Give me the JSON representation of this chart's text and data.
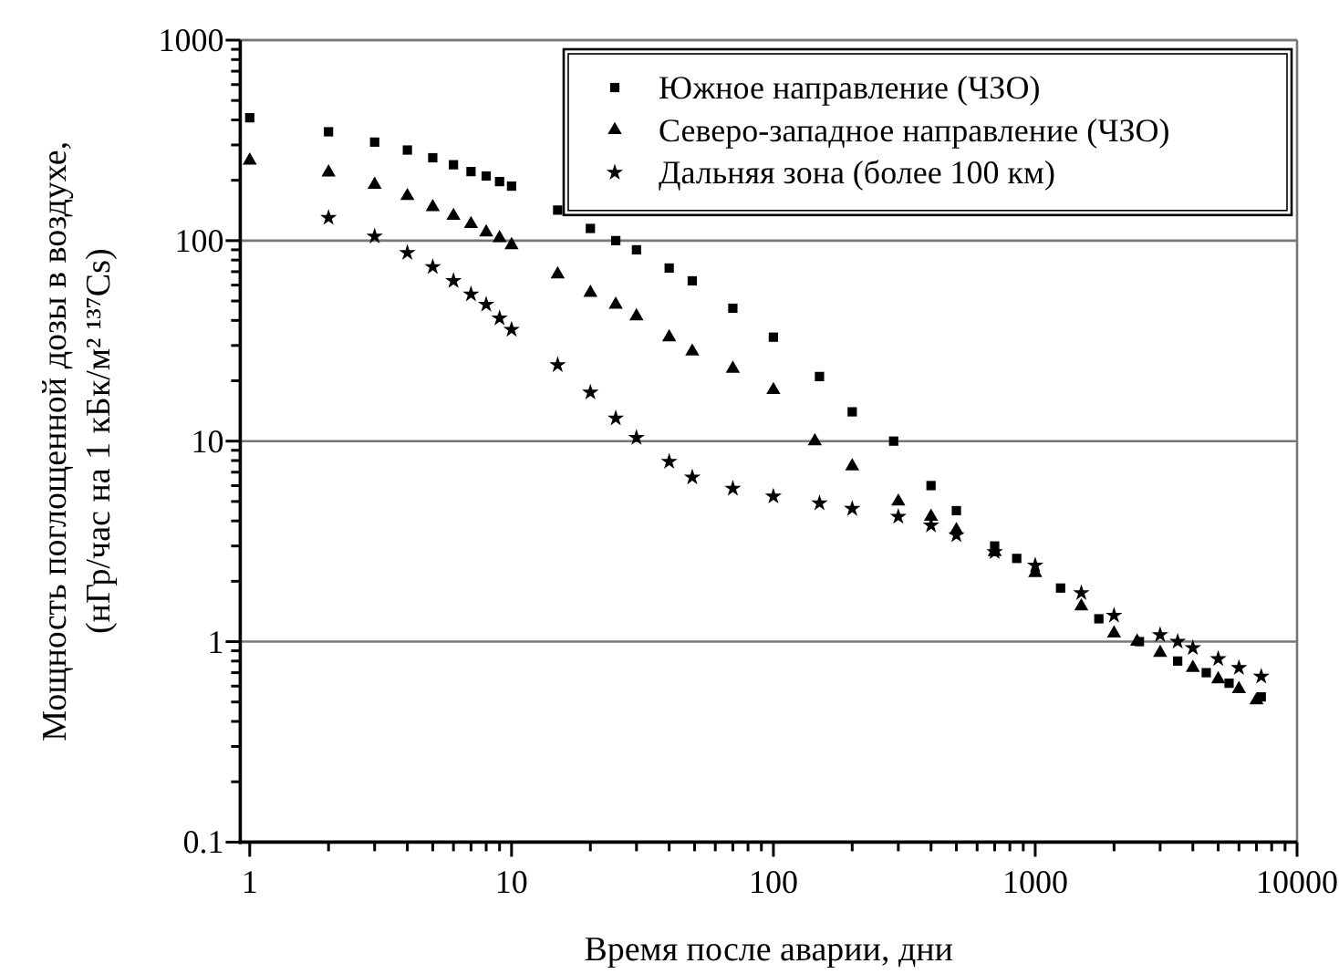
{
  "chart_data": {
    "type": "scatter",
    "xlabel": "Время после аварии, дни",
    "ylabel": "Мощность поглощенной дозы в воздухе,\n(нГр/час на 1 кБк/м² ¹³⁷Cs)",
    "log": "xy",
    "grid": "y",
    "legend": "top right",
    "xlim": [
      0.92,
      10000
    ],
    "ylim": [
      0.1,
      1000
    ],
    "xticks": [
      1,
      {
        "value": 2,
        "label": null
      },
      {
        "value": 3,
        "label": null
      },
      {
        "value": 4,
        "label": null
      },
      {
        "value": 5,
        "label": null
      },
      {
        "value": 6,
        "label": null
      },
      {
        "value": 7,
        "label": null
      },
      {
        "value": 8,
        "label": null
      },
      {
        "value": 9,
        "label": null
      },
      10,
      {
        "value": 20,
        "label": null
      },
      {
        "value": 30,
        "label": null
      },
      {
        "value": 40,
        "label": null
      },
      {
        "value": 50,
        "label": null
      },
      {
        "value": 60,
        "label": null
      },
      {
        "value": 70,
        "label": null
      },
      {
        "value": 80,
        "label": null
      },
      {
        "value": 90,
        "label": null
      },
      100,
      {
        "value": 200,
        "label": null
      },
      {
        "value": 300,
        "label": null
      },
      {
        "value": 400,
        "label": null
      },
      {
        "value": 500,
        "label": null
      },
      {
        "value": 600,
        "label": null
      },
      {
        "value": 700,
        "label": null
      },
      {
        "value": 800,
        "label": null
      },
      {
        "value": 900,
        "label": null
      },
      1000,
      {
        "value": 2000,
        "label": null
      },
      {
        "value": 3000,
        "label": null
      },
      {
        "value": 4000,
        "label": null
      },
      {
        "value": 5000,
        "label": null
      },
      {
        "value": 6000,
        "label": null
      },
      {
        "value": 7000,
        "label": null
      },
      {
        "value": 8000,
        "label": null
      },
      {
        "value": 9000,
        "label": null
      },
      10000
    ],
    "yticks": [
      0.1,
      {
        "value": 0.2,
        "label": null
      },
      {
        "value": 0.3,
        "label": null
      },
      {
        "value": 0.4,
        "label": null
      },
      {
        "value": 0.5,
        "label": null
      },
      {
        "value": 0.6,
        "label": null
      },
      {
        "value": 0.7,
        "label": null
      },
      {
        "value": 0.8,
        "label": null
      },
      {
        "value": 0.9,
        "label": null
      },
      1,
      {
        "value": 2,
        "label": null
      },
      {
        "value": 3,
        "label": null
      },
      {
        "value": 4,
        "label": null
      },
      {
        "value": 5,
        "label": null
      },
      {
        "value": 6,
        "label": null
      },
      {
        "value": 7,
        "label": null
      },
      {
        "value": 8,
        "label": null
      },
      {
        "value": 9,
        "label": null
      },
      10,
      {
        "value": 20,
        "label": null
      },
      {
        "value": 30,
        "label": null
      },
      {
        "value": 40,
        "label": null
      },
      {
        "value": 50,
        "label": null
      },
      {
        "value": 60,
        "label": null
      },
      {
        "value": 70,
        "label": null
      },
      {
        "value": 80,
        "label": null
      },
      {
        "value": 90,
        "label": null
      },
      100,
      {
        "value": 200,
        "label": null
      },
      {
        "value": 300,
        "label": null
      },
      {
        "value": 400,
        "label": null
      },
      {
        "value": 500,
        "label": null
      },
      {
        "value": 600,
        "label": null
      },
      {
        "value": 700,
        "label": null
      },
      {
        "value": 800,
        "label": null
      },
      {
        "value": 900,
        "label": null
      },
      1000
    ],
    "series": [
      {
        "name": "Южное направление (ЧЗО)",
        "color": "#000000",
        "marker": "square",
        "x": [
          1,
          2,
          3,
          4,
          5,
          6,
          7,
          8,
          9,
          10,
          15,
          20,
          25,
          30,
          40,
          49,
          70,
          100,
          150,
          200,
          288,
          400,
          500,
          700,
          850,
          1250,
          1750,
          2500,
          3500,
          4500,
          5500,
          7300
        ],
        "values": [
          410,
          349,
          310,
          283,
          259,
          239,
          221,
          210,
          197,
          187,
          142,
          115,
          100,
          90,
          73,
          63,
          46,
          33,
          21,
          14,
          10,
          6,
          4.5,
          3,
          2.6,
          1.85,
          1.3,
          1,
          0.8,
          0.7,
          0.62,
          0.53
        ]
      },
      {
        "name": "Северо-западное направление (ЧЗО)",
        "color": "#000000",
        "marker": "triangle",
        "x": [
          1,
          2,
          3,
          4,
          5,
          6,
          7,
          8,
          9,
          10,
          15,
          20,
          25,
          30,
          40,
          49,
          70,
          100,
          144,
          200,
          300,
          400,
          500,
          700,
          1000,
          1500,
          2000,
          2450,
          3000,
          4000,
          5000,
          6000,
          7000
        ],
        "values": [
          251,
          219,
          190,
          167,
          147,
          133,
          121,
          110,
          103,
          95,
          68,
          55,
          48,
          42,
          33,
          28,
          23,
          18,
          10,
          7.5,
          5,
          4.2,
          3.6,
          2.8,
          2.2,
          1.5,
          1.1,
          1,
          0.88,
          0.74,
          0.65,
          0.58,
          0.51
        ]
      },
      {
        "name": "Дальняя зона (более 100 км)",
        "color": "#000000",
        "marker": "star",
        "x": [
          2,
          3,
          4,
          5,
          6,
          7,
          8,
          9,
          10,
          15,
          20,
          25,
          30,
          40,
          49,
          70,
          100,
          150,
          200,
          300,
          400,
          500,
          700,
          1000,
          1500,
          2000,
          3000,
          3500,
          4000,
          5000,
          6000,
          7300
        ],
        "values": [
          130,
          105,
          87,
          74,
          63,
          54,
          48,
          41,
          36,
          24,
          17.5,
          13,
          10.4,
          7.9,
          6.6,
          5.8,
          5.3,
          4.9,
          4.6,
          4.2,
          3.8,
          3.4,
          2.8,
          2.4,
          1.75,
          1.35,
          1.08,
          1,
          0.93,
          0.82,
          0.74,
          0.67
        ]
      }
    ]
  }
}
